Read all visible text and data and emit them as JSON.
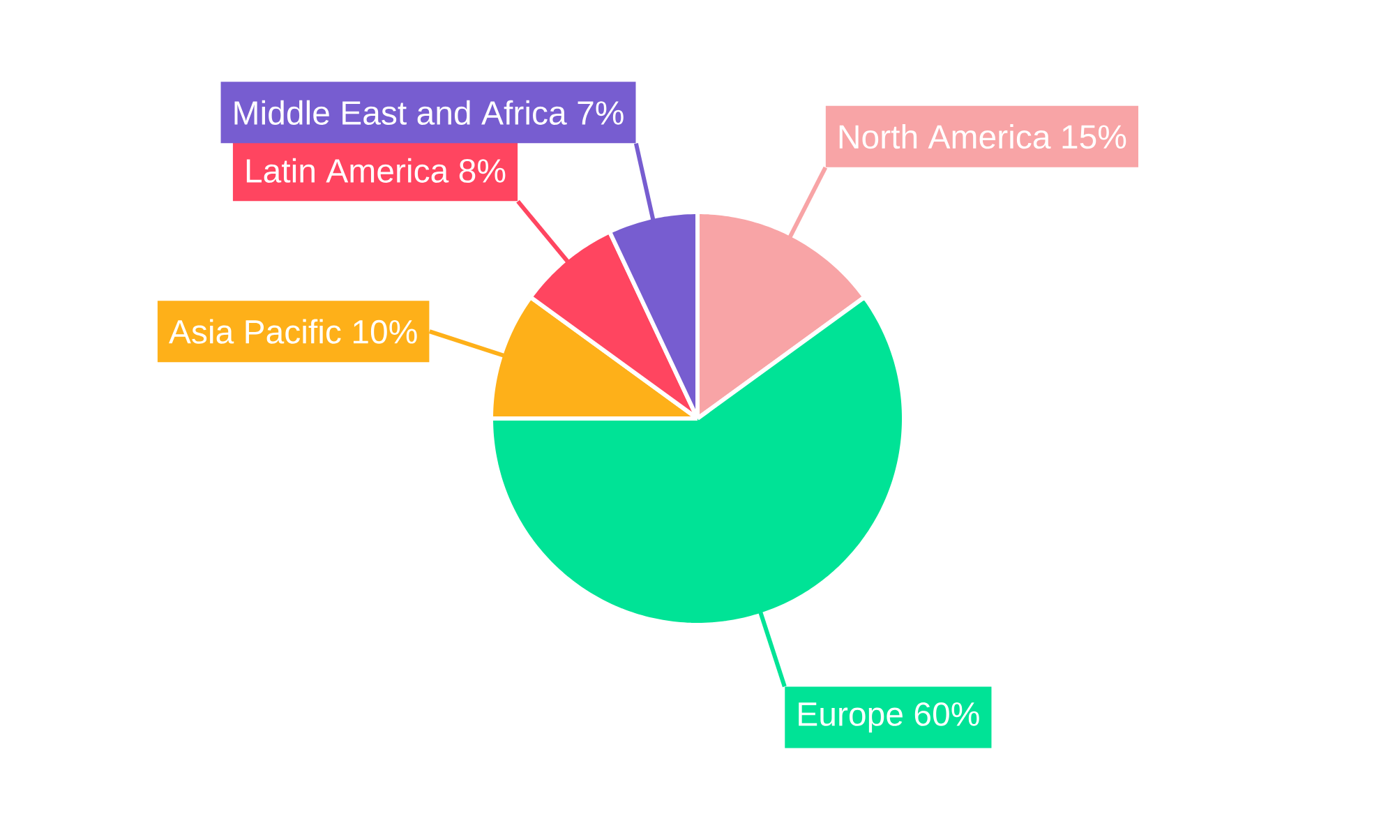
{
  "chart_data": {
    "type": "pie",
    "categories": [
      "North America",
      "Europe",
      "Asia Pacific",
      "Latin America",
      "Middle East and Africa"
    ],
    "values": [
      15,
      60,
      10,
      8,
      7
    ],
    "colors": [
      "#f8a4a6",
      "#00e396",
      "#feb019",
      "#ff4560",
      "#775dd0"
    ],
    "value_labels": [
      "15%",
      "60%",
      "10%",
      "8%",
      "7%"
    ]
  }
}
